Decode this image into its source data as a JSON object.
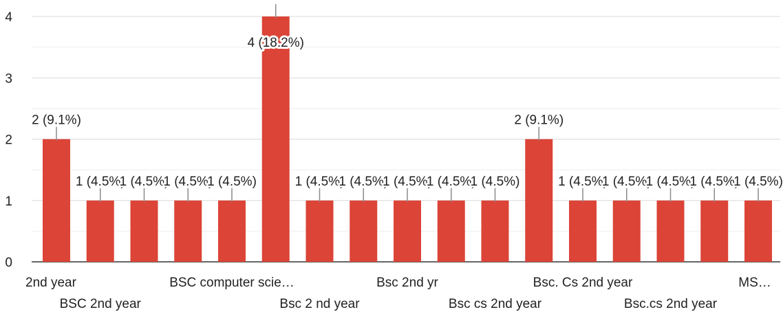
{
  "chart_data": {
    "type": "bar",
    "title": "",
    "xlabel": "",
    "ylabel": "",
    "ylim": [
      0,
      4
    ],
    "yticks": [
      0,
      1,
      2,
      3,
      4
    ],
    "grid": true,
    "legend": "none",
    "bar_color": "#db4437",
    "categories": [
      "2nd year",
      "BSC 2nd year",
      "",
      "",
      "BSC computer scie…",
      "",
      "Bsc 2 nd year",
      "",
      "Bsc 2nd yr",
      "",
      "Bsc cs 2nd year",
      "",
      "Bsc. Cs 2nd year",
      "",
      "Bsc.cs 2nd year",
      "",
      "MS…"
    ],
    "values": [
      2,
      1,
      1,
      1,
      1,
      4,
      1,
      1,
      1,
      1,
      1,
      2,
      1,
      1,
      1,
      1,
      1
    ],
    "data_labels": [
      "2 (9.1%)",
      "1 (4.5%)",
      "1 (4.5%)",
      "1 (4.5%)",
      "1 (4.5%)",
      "4 (18.2%)",
      "1 (4.5%)",
      "1 (4.5%)",
      "1 (4.5%)",
      "1 (4.5%)",
      "1 (4.5%)",
      "2 (9.1%)",
      "1 (4.5%)",
      "1 (4.5%)",
      "1 (4.5%)",
      "1 (4.5%)",
      "1 (4.5%)"
    ]
  }
}
